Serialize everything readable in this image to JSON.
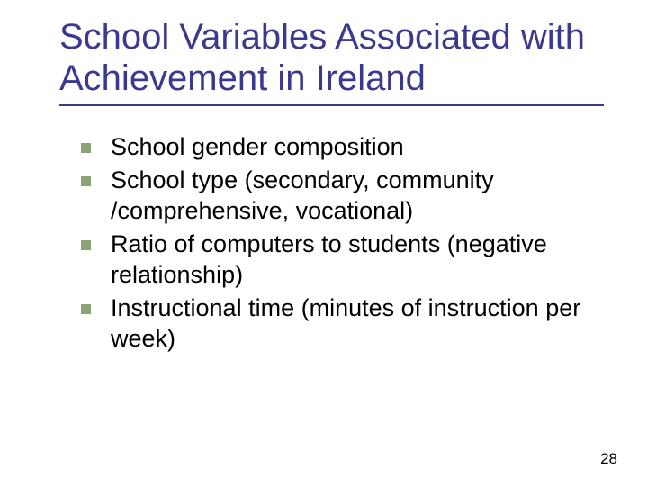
{
  "slide": {
    "title": "School Variables Associated with Achievement in Ireland",
    "title_color": "#3b3890",
    "title_fontsize": 40,
    "underline_color": "#3b3890",
    "bullet_color": "#89a576",
    "bullet_size": 11,
    "body_fontsize": 27,
    "body_color": "#000000",
    "background_color": "#ffffff",
    "bullets": [
      {
        "text": "School gender composition"
      },
      {
        "text": "School type (secondary, community /comprehensive, vocational)"
      },
      {
        "text": "Ratio of computers to students (negative relationship)"
      },
      {
        "text": "Instructional time (minutes of instruction per week)"
      }
    ],
    "page_number": "28",
    "page_number_fontsize": 17
  }
}
